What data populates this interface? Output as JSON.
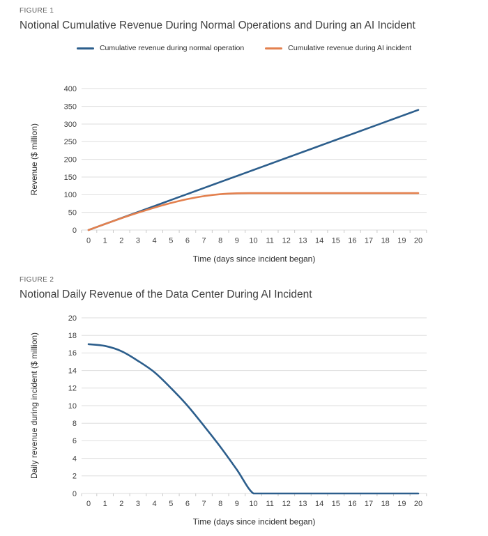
{
  "figures": [
    {
      "eyebrow": "FIGURE 1"
    },
    {
      "eyebrow": "FIGURE 2"
    }
  ],
  "chart_data": [
    {
      "id": "figure1",
      "type": "line",
      "title": "Notional Cumulative Revenue During Normal Operations and During an AI Incident",
      "xlabel": "Time (days since incident began)",
      "ylabel": "Revenue ($ million)",
      "x": [
        0,
        1,
        2,
        3,
        4,
        5,
        6,
        7,
        8,
        9,
        10,
        11,
        12,
        13,
        14,
        15,
        16,
        17,
        18,
        19,
        20
      ],
      "xticks": [
        0,
        1,
        2,
        3,
        4,
        5,
        6,
        7,
        8,
        9,
        10,
        11,
        12,
        13,
        14,
        15,
        16,
        17,
        18,
        19,
        20
      ],
      "yticks": [
        0,
        50,
        100,
        150,
        200,
        250,
        300,
        350,
        400
      ],
      "ylim": [
        0,
        400
      ],
      "grid": true,
      "legend_position": "top",
      "series": [
        {
          "name": "Cumulative revenue during normal operation",
          "color": "#2C5E8C",
          "values": [
            0,
            17,
            34,
            51,
            68,
            85,
            102,
            119,
            136,
            153,
            170,
            187,
            204,
            221,
            238,
            255,
            272,
            289,
            306,
            323,
            340
          ]
        },
        {
          "name": "Cumulative revenue during AI incident",
          "color": "#E3804E",
          "values": [
            0,
            17,
            33.5,
            49,
            63.5,
            76.5,
            87.5,
            96,
            101.5,
            104,
            104.5,
            104.5,
            104.5,
            104.5,
            104.5,
            104.5,
            104.5,
            104.5,
            104.5,
            104.5,
            104.5
          ]
        }
      ]
    },
    {
      "id": "figure2",
      "type": "line",
      "title": "Notional Daily Revenue of the Data Center During AI Incident",
      "xlabel": "Time (days since incident began)",
      "ylabel": "Daily revenue during incident ($ million)",
      "x": [
        0,
        1,
        2,
        3,
        4,
        5,
        6,
        7,
        8,
        9,
        10,
        11,
        12,
        13,
        14,
        15,
        16,
        17,
        18,
        19,
        20
      ],
      "xticks": [
        0,
        1,
        2,
        3,
        4,
        5,
        6,
        7,
        8,
        9,
        10,
        11,
        12,
        13,
        14,
        15,
        16,
        17,
        18,
        19,
        20
      ],
      "yticks": [
        0,
        2,
        4,
        6,
        8,
        10,
        12,
        14,
        16,
        18,
        20
      ],
      "ylim": [
        0,
        20
      ],
      "grid": true,
      "legend_position": "none",
      "series": [
        {
          "name": "Daily revenue during incident",
          "color": "#2C5E8C",
          "values": [
            17,
            16.8,
            16.2,
            15.1,
            13.8,
            12,
            10,
            7.7,
            5.3,
            2.7,
            0,
            0,
            0,
            0,
            0,
            0,
            0,
            0,
            0,
            0,
            0
          ]
        }
      ]
    }
  ],
  "theme": {
    "background": "#ffffff",
    "grid_color": "#dedede",
    "title_color": "#3f3f3f",
    "eyebrow_color": "#5c5c5c",
    "blue": "#2C5E8C",
    "orange": "#E3804E"
  }
}
